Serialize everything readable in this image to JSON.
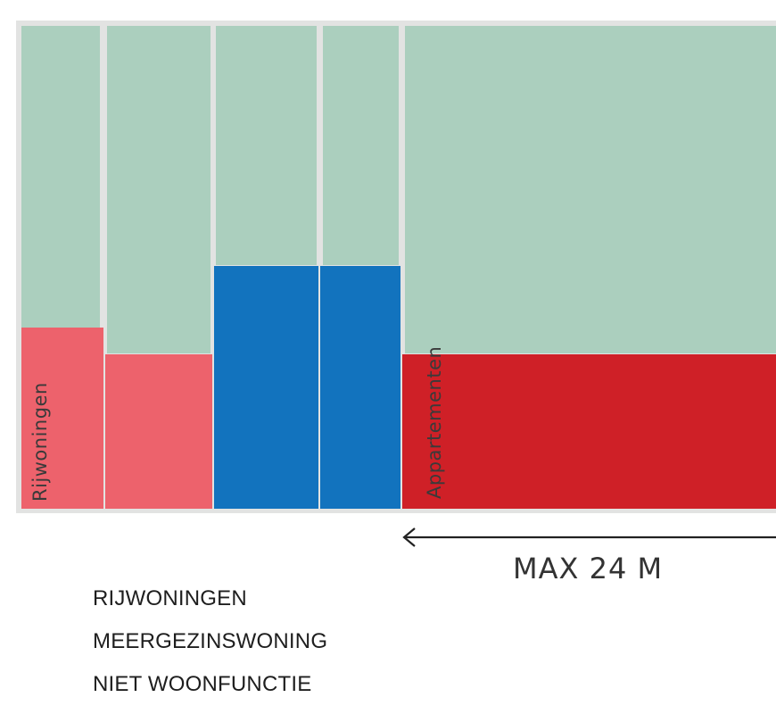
{
  "colors": {
    "green": "#abcfbe",
    "pink": "#ed626c",
    "blue": "#1273be",
    "red": "#cf2027",
    "arrow": "#222222"
  },
  "labels": {
    "rijwoningen": "Rijwoningen",
    "appartementen": "Appartementen"
  },
  "dimension": {
    "text": "MAX 24 M",
    "arrow_icon": "arrow-left"
  },
  "legend": {
    "items": [
      {
        "label": "RIJWONINGEN"
      },
      {
        "label": "MEERGEZINSWONING"
      },
      {
        "label": "NIET WOONFUNCTIE"
      }
    ]
  }
}
